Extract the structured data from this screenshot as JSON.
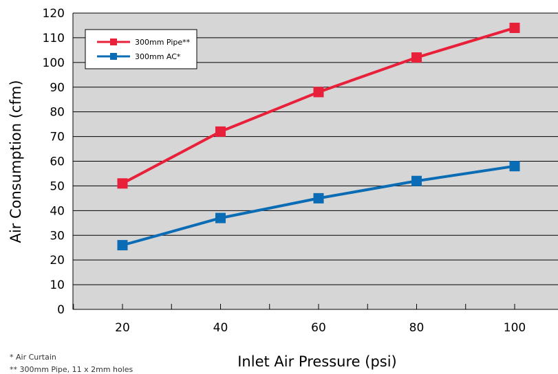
{
  "chart_data": {
    "type": "line",
    "xlabel": "Inlet Air Pressure (psi)",
    "ylabel": "Air Consumption (cfm)",
    "x": [
      20,
      40,
      60,
      80,
      100
    ],
    "xlim": [
      10,
      100
    ],
    "ylim": [
      0,
      120
    ],
    "yticks": [
      "0",
      "10",
      "20",
      "30",
      "40",
      "50",
      "60",
      "70",
      "80",
      "90",
      "100",
      "110",
      "120"
    ],
    "xticks": [
      "20",
      "40",
      "60",
      "80",
      "100"
    ],
    "grid": true,
    "legend_position": "top-left",
    "series": [
      {
        "name": "300mm Pipe**",
        "color": "#e8203a",
        "values": [
          51,
          72,
          88,
          102,
          114
        ]
      },
      {
        "name": "300mm AC*",
        "color": "#0a6cb4",
        "values": [
          26,
          37,
          45,
          52,
          58
        ]
      }
    ]
  },
  "footnotes": {
    "line1": "* Air Curtain",
    "line2": "** 300mm Pipe, 11 x 2mm holes"
  }
}
